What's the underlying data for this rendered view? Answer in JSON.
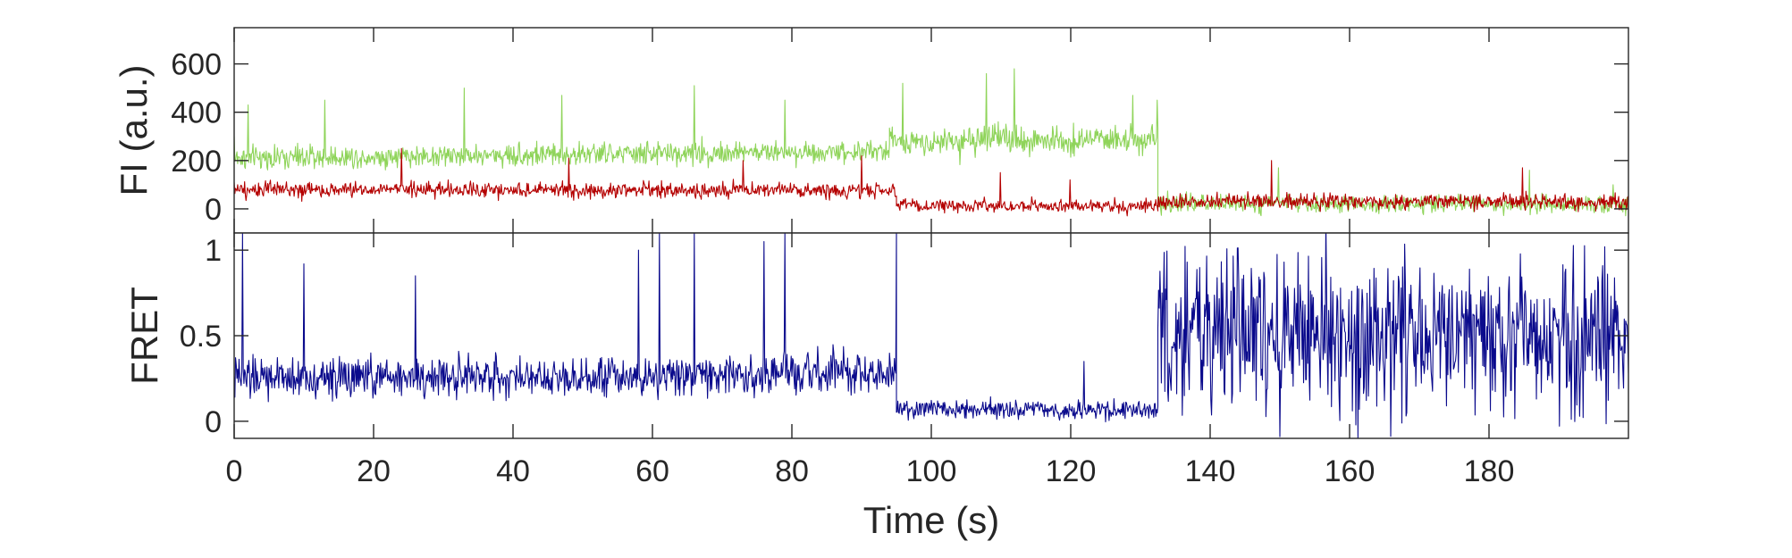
{
  "chart_data": [
    {
      "type": "line",
      "panel": "top",
      "title": "",
      "xlabel": "",
      "ylabel": "FI (a.u.)",
      "xlim": [
        0,
        200
      ],
      "ylim": [
        -100,
        750
      ],
      "yticks": [
        0,
        200,
        400,
        600
      ],
      "grid": false,
      "series": [
        {
          "color": "#8fd45a",
          "segments": [
            {
              "x0": 0,
              "x1": 94,
              "mean_start": 210,
              "mean_end": 240,
              "noise": 60
            },
            {
              "x0": 94,
              "x1": 132.5,
              "mean_start": 280,
              "mean_end": 290,
              "noise": 75
            },
            {
              "x0": 132.5,
              "x1": 200,
              "mean_start": 20,
              "mean_end": 20,
              "noise": 45
            }
          ],
          "keypoints": {
            "x": [
              0,
              2,
              13,
              33,
              47,
              66,
              79,
              96,
              108,
              112,
              129,
              132.5,
              150,
              186,
              198
            ],
            "y": [
              300,
              430,
              450,
              500,
              470,
              510,
              450,
              520,
              560,
              580,
              470,
              450,
              170,
              160,
              100
            ]
          }
        },
        {
          "color": "#b40000",
          "segments": [
            {
              "x0": 0,
              "x1": 95,
              "mean_start": 80,
              "mean_end": 75,
              "noise": 40
            },
            {
              "x0": 95,
              "x1": 132.5,
              "mean_start": 15,
              "mean_end": 10,
              "noise": 35
            },
            {
              "x0": 132.5,
              "x1": 200,
              "mean_start": 30,
              "mean_end": 30,
              "noise": 40
            }
          ],
          "keypoints": {
            "x": [
              0,
              24,
              48,
              73,
              90,
              110,
              120,
              149,
              185
            ],
            "y": [
              110,
              250,
              210,
              200,
              220,
              150,
              120,
              200,
              170
            ]
          }
        }
      ]
    },
    {
      "type": "line",
      "panel": "bottom",
      "title": "",
      "xlabel": "Time (s)",
      "ylabel": "FRET",
      "xlim": [
        0,
        200
      ],
      "ylim": [
        -0.1,
        1.1
      ],
      "yticks": [
        0,
        0.5,
        1
      ],
      "ytick_labels": [
        "0",
        "0.5",
        "1"
      ],
      "xticks": [
        0,
        20,
        40,
        60,
        80,
        100,
        120,
        140,
        160,
        180
      ],
      "xtick_labels": [
        "0",
        "20",
        "40",
        "60",
        "80",
        "100",
        "120",
        "140",
        "160",
        "180"
      ],
      "grid": false,
      "series": [
        {
          "color": "#0a0a8c",
          "segments": [
            {
              "x0": 0,
              "x1": 95,
              "mean_start": 0.25,
              "mean_end": 0.28,
              "noise": 0.15
            },
            {
              "x0": 95,
              "x1": 132.5,
              "mean_start": 0.07,
              "mean_end": 0.06,
              "noise": 0.07
            },
            {
              "x0": 132.5,
              "x1": 200,
              "mean_start": 0.5,
              "mean_end": 0.5,
              "noise": 0.6
            }
          ],
          "keypoints": {
            "x": [
              1.2,
              10,
              26,
              58,
              61,
              66,
              76,
              79,
              95,
              122
            ],
            "y": [
              1.1,
              0.92,
              0.85,
              1.0,
              1.1,
              1.1,
              1.05,
              1.1,
              1.1,
              0.35
            ]
          }
        }
      ]
    }
  ]
}
